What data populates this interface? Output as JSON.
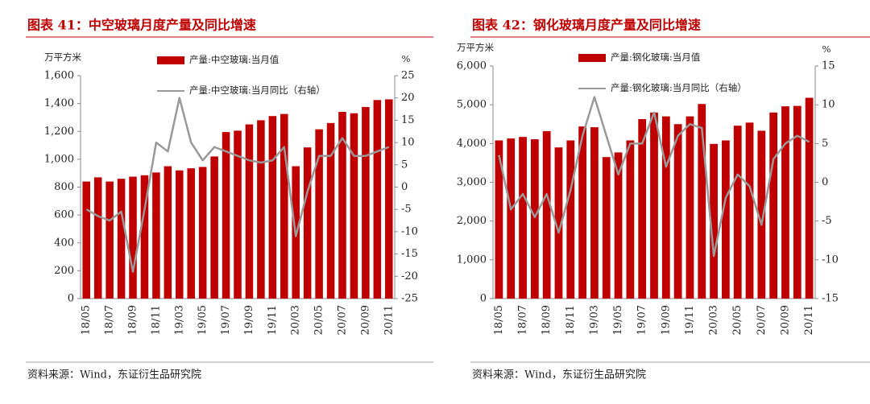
{
  "chart_data": [
    {
      "type": "bar",
      "title": "图表 41：中空玻璃月度产量及同比增速",
      "y_label": "万平方米",
      "y2_label": "%",
      "source": "资料来源：Wind，东证衍生品研究院",
      "categories": [
        "18/05",
        null,
        "18/07",
        null,
        "18/09",
        null,
        "18/11",
        null,
        "19/03",
        null,
        "19/05",
        null,
        "19/07",
        null,
        "19/09",
        null,
        "19/11",
        null,
        "20/03",
        null,
        "20/05",
        null,
        "20/07",
        null,
        "20/09",
        null,
        "20/11"
      ],
      "series": [
        {
          "name": "产量:中空玻璃:当月值",
          "type": "bar",
          "color": "#c00000",
          "values": [
            840,
            870,
            840,
            860,
            875,
            885,
            905,
            950,
            920,
            935,
            945,
            1020,
            1195,
            1205,
            1250,
            1280,
            1310,
            1325,
            950,
            1085,
            1215,
            1260,
            1340,
            1330,
            1375,
            1425,
            1430
          ]
        },
        {
          "name": "产量:中空玻璃:当月同比（右轴）",
          "type": "line",
          "axis": "y2",
          "color": "#999999",
          "values": [
            -5,
            -6.5,
            -7.5,
            -5.5,
            -19,
            -5,
            10,
            8,
            20,
            10,
            6,
            9,
            8,
            7,
            6,
            5.5,
            6,
            9,
            -11,
            -1,
            7,
            7,
            11,
            7,
            7,
            8,
            9
          ]
        }
      ],
      "ylim": [
        0,
        1600
      ],
      "yticks": [
        0,
        200,
        400,
        600,
        800,
        {
          "value": 1000,
          "label": "1,000"
        },
        {
          "value": 1200,
          "label": "1,200"
        },
        {
          "value": 1400,
          "label": "1,400"
        },
        {
          "value": 1600,
          "label": "1,600"
        }
      ],
      "y2lim": [
        -25,
        25
      ],
      "y2ticks": [
        -25,
        -20,
        -15,
        -10,
        -5,
        0,
        5,
        10,
        15,
        20,
        25
      ]
    },
    {
      "type": "bar",
      "title": "图表 42：钢化玻璃月度产量及同比增速",
      "y_label": "万平方米",
      "y2_label": "%",
      "source": "资料来源：Wind，东证衍生品研究院",
      "categories": [
        "18/05",
        null,
        "18/07",
        null,
        "18/09",
        null,
        "18/11",
        null,
        "19/03",
        null,
        "19/05",
        null,
        "19/07",
        null,
        "19/09",
        null,
        "19/11",
        null,
        "20/03",
        null,
        "20/05",
        null,
        "20/07",
        null,
        "20/09",
        null,
        "20/11"
      ],
      "series": [
        {
          "name": "产量:钢化玻璃:当月值",
          "type": "bar",
          "color": "#c00000",
          "values": [
            4080,
            4130,
            4170,
            4110,
            4320,
            3900,
            4080,
            4440,
            4420,
            3650,
            3770,
            4080,
            4630,
            4800,
            4700,
            4500,
            4700,
            5020,
            3990,
            4080,
            4460,
            4540,
            4330,
            4800,
            4960,
            4970,
            5180
          ]
        },
        {
          "name": "产量:钢化玻璃:当月同比（右轴）",
          "type": "line",
          "axis": "y2",
          "color": "#999999",
          "values": [
            3.5,
            -3.5,
            -1.5,
            -4.5,
            -1.5,
            -6.5,
            -1,
            6,
            11,
            6,
            1,
            5,
            5,
            9,
            2,
            6,
            7.5,
            7,
            -9.5,
            -2,
            1,
            -0.5,
            -5.5,
            3,
            5,
            6,
            5.2
          ]
        }
      ],
      "ylim": [
        0,
        6000
      ],
      "yticks": [
        0,
        {
          "value": 1000,
          "label": "1,000"
        },
        {
          "value": 2000,
          "label": "2,000"
        },
        {
          "value": 3000,
          "label": "3,000"
        },
        {
          "value": 4000,
          "label": "4,000"
        },
        {
          "value": 5000,
          "label": "5,000"
        },
        {
          "value": 6000,
          "label": "6,000"
        }
      ],
      "y2lim": [
        -15,
        15
      ],
      "y2ticks": [
        -15,
        -10,
        -5,
        0,
        5,
        10,
        15
      ]
    }
  ]
}
